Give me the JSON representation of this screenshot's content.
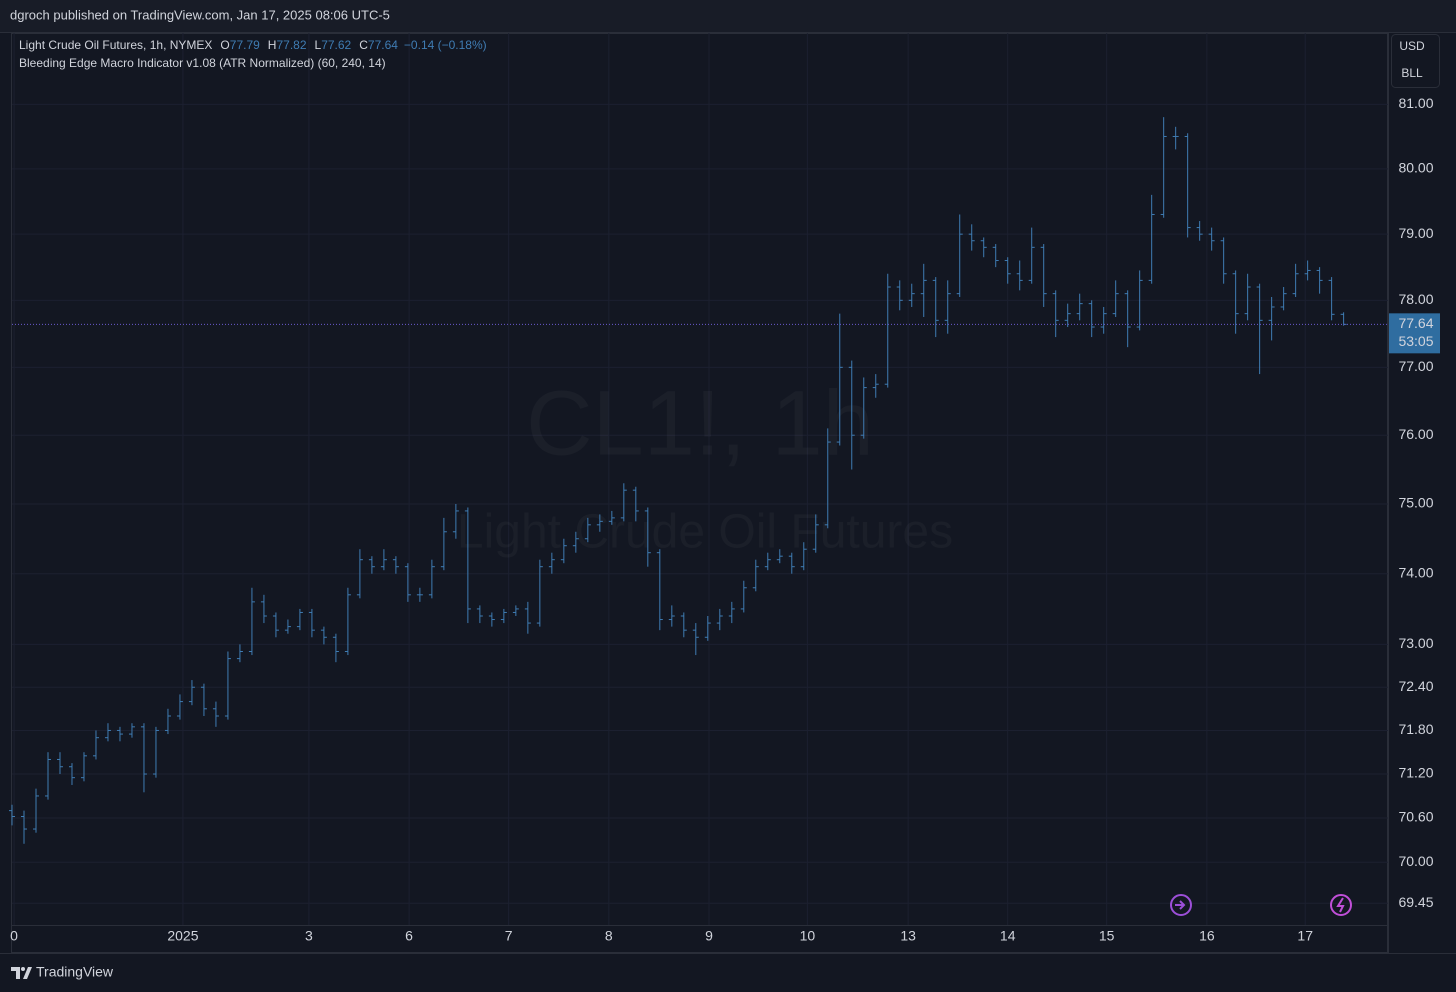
{
  "header": {
    "text": "dgroch published on TradingView.com, Jan 17, 2025 08:06 UTC-5"
  },
  "chart_data": {
    "type": "ohlc",
    "log_scale": true,
    "grid": true,
    "legend": {
      "labels": [
        "O",
        "H",
        "L",
        "C"
      ],
      "change": "−0.14 (−0.18%)",
      "indicator": "Bleeding Edge Macro Indicator v1.08 (ATR Normalized) (60, 240, 14)"
    },
    "watermark": {
      "symbol": "CL1!, 1h",
      "description": "Light Crude Oil Futures"
    },
    "price_axis_buttons": [
      "USD",
      "BLL"
    ],
    "countdown": "53:05",
    "xlim": [
      0,
      114.7
    ],
    "xticks": [
      {
        "value": 0.17,
        "label": "0"
      },
      {
        "value": 14.25,
        "label": "2025"
      },
      {
        "value": 24.75,
        "label": "3"
      },
      {
        "value": 33.1,
        "label": "6"
      },
      {
        "value": 41.4,
        "label": "7"
      },
      {
        "value": 49.75,
        "label": "8"
      },
      {
        "value": 58.1,
        "label": "9"
      },
      {
        "value": 66.3,
        "label": "10"
      },
      {
        "value": 74.7,
        "label": "13"
      },
      {
        "value": 83,
        "label": "14"
      },
      {
        "value": 91.25,
        "label": "15"
      },
      {
        "value": 99.6,
        "label": "16"
      },
      {
        "value": 107.8,
        "label": "17"
      }
    ],
    "ylim": [
      69.16,
      82.12
    ],
    "yticks": [
      {
        "value": 69.45,
        "label": "69.45"
      },
      {
        "value": 70,
        "label": "70.00"
      },
      {
        "value": 70.6,
        "label": "70.60"
      },
      {
        "value": 71.2,
        "label": "71.20"
      },
      {
        "value": 71.8,
        "label": "71.80"
      },
      {
        "value": 72.4,
        "label": "72.40"
      },
      {
        "value": 73,
        "label": "73.00"
      },
      {
        "value": 74,
        "label": "74.00"
      },
      {
        "value": 75,
        "label": "75.00"
      },
      {
        "value": 76,
        "label": "76.00"
      },
      {
        "value": 77,
        "label": "77.00"
      },
      {
        "value": 78,
        "label": "78.00"
      },
      {
        "value": 79,
        "label": "79.00"
      },
      {
        "value": 80,
        "label": "80.00"
      },
      {
        "value": 81,
        "label": "81.00"
      }
    ],
    "series": [
      {
        "name": "Light Crude Oil Futures, 1h, NYMEX",
        "color": "#3f7cb3",
        "x": [
          0,
          1,
          2,
          3,
          4,
          5,
          6,
          7,
          8,
          9,
          10,
          11,
          12,
          13,
          14,
          15,
          16,
          17,
          18,
          19,
          20,
          21,
          22,
          23,
          24,
          25,
          26,
          27,
          28,
          29,
          30,
          31,
          32,
          33,
          34,
          35,
          36,
          37,
          38,
          39,
          40,
          41,
          42,
          43,
          44,
          45,
          46,
          47,
          48,
          49,
          50,
          51,
          52,
          53,
          54,
          55,
          56,
          57,
          58,
          59,
          60,
          61,
          62,
          63,
          64,
          65,
          66,
          67,
          68,
          69,
          70,
          71,
          72,
          73,
          74,
          75,
          76,
          77,
          78,
          79,
          80,
          81,
          82,
          83,
          84,
          85,
          86,
          87,
          88,
          89,
          90,
          91,
          92,
          93,
          94,
          95,
          96,
          97,
          98,
          99,
          100,
          101,
          102,
          103,
          104,
          105,
          106,
          107,
          108,
          109,
          110,
          111
        ],
        "open": [
          70.7,
          70.62,
          70.45,
          70.9,
          71.4,
          71.3,
          71.15,
          71.45,
          71.7,
          71.8,
          71.75,
          71.85,
          71.2,
          71.8,
          72.0,
          72.2,
          72.4,
          72.1,
          72.0,
          72.8,
          72.9,
          73.6,
          73.4,
          73.2,
          73.25,
          73.45,
          73.2,
          73.1,
          72.9,
          73.7,
          74.2,
          74.1,
          74.2,
          74.1,
          73.7,
          73.7,
          74.1,
          74.6,
          74.9,
          73.5,
          73.4,
          73.35,
          73.45,
          73.5,
          73.3,
          74.1,
          74.2,
          74.4,
          74.5,
          74.7,
          74.75,
          74.8,
          75.2,
          74.9,
          74.3,
          73.35,
          73.4,
          73.2,
          73.1,
          73.3,
          73.4,
          73.5,
          73.8,
          74.1,
          74.2,
          74.25,
          74.1,
          74.35,
          74.7,
          75.9,
          77.0,
          76.0,
          76.7,
          76.75,
          78.2,
          78.0,
          78.1,
          78.3,
          77.7,
          78.1,
          79.0,
          78.9,
          78.8,
          78.6,
          78.4,
          78.3,
          78.8,
          78.1,
          77.7,
          77.8,
          77.95,
          77.6,
          77.8,
          78.1,
          77.6,
          78.3,
          79.3,
          80.5,
          80.5,
          79.1,
          79.0,
          78.9,
          78.4,
          77.8,
          78.2,
          77.7,
          77.9,
          78.1,
          78.4,
          78.45,
          78.3,
          77.79
        ],
        "high": [
          70.78,
          70.7,
          71.0,
          71.5,
          71.5,
          71.35,
          71.5,
          71.8,
          71.9,
          71.85,
          71.9,
          71.9,
          71.85,
          72.1,
          72.3,
          72.5,
          72.45,
          72.2,
          72.9,
          73.0,
          73.8,
          73.7,
          73.45,
          73.35,
          73.5,
          73.5,
          73.25,
          73.15,
          73.8,
          74.35,
          74.25,
          74.35,
          74.25,
          74.15,
          73.8,
          74.2,
          74.8,
          75.0,
          74.95,
          73.55,
          73.45,
          73.5,
          73.55,
          73.6,
          74.2,
          74.3,
          74.5,
          74.6,
          74.8,
          74.85,
          74.9,
          75.3,
          75.25,
          74.95,
          74.35,
          73.55,
          73.45,
          73.3,
          73.4,
          73.5,
          73.6,
          73.9,
          74.2,
          74.3,
          74.35,
          74.3,
          74.45,
          74.85,
          76.1,
          77.8,
          77.1,
          76.85,
          76.9,
          78.4,
          78.3,
          78.25,
          78.55,
          78.35,
          78.3,
          79.3,
          79.15,
          78.95,
          78.85,
          78.65,
          78.6,
          79.1,
          78.85,
          78.15,
          77.95,
          78.1,
          78.0,
          77.9,
          78.3,
          78.15,
          78.45,
          79.6,
          80.8,
          80.65,
          80.55,
          79.2,
          79.1,
          78.95,
          78.45,
          78.4,
          78.25,
          78.05,
          78.2,
          78.55,
          78.6,
          78.5,
          78.35,
          77.82
        ],
        "low": [
          70.5,
          70.25,
          70.4,
          70.85,
          71.2,
          71.05,
          71.1,
          71.4,
          71.65,
          71.65,
          71.7,
          70.95,
          71.15,
          71.75,
          71.95,
          72.15,
          72.0,
          71.85,
          71.95,
          72.75,
          72.85,
          73.3,
          73.1,
          73.15,
          73.2,
          73.1,
          73.0,
          72.75,
          72.85,
          73.65,
          74.0,
          74.05,
          74.0,
          73.6,
          73.6,
          73.65,
          74.05,
          74.5,
          73.3,
          73.3,
          73.25,
          73.3,
          73.4,
          73.15,
          73.25,
          74.0,
          74.15,
          74.3,
          74.45,
          74.6,
          74.7,
          74.75,
          74.75,
          74.1,
          73.2,
          73.25,
          73.1,
          72.85,
          73.05,
          73.2,
          73.3,
          73.45,
          73.75,
          74.05,
          74.15,
          74.0,
          74.05,
          74.3,
          74.65,
          75.85,
          75.5,
          75.95,
          76.55,
          76.7,
          77.85,
          77.9,
          77.75,
          77.45,
          77.5,
          78.05,
          78.75,
          78.65,
          78.5,
          78.25,
          78.15,
          78.25,
          77.9,
          77.45,
          77.6,
          77.7,
          77.45,
          77.5,
          77.75,
          77.3,
          77.55,
          78.25,
          79.25,
          80.3,
          78.95,
          78.9,
          78.75,
          78.25,
          77.5,
          77.7,
          76.9,
          77.4,
          77.85,
          78.05,
          78.3,
          78.1,
          77.7,
          77.62
        ],
        "close": [
          70.62,
          70.45,
          70.9,
          71.4,
          71.3,
          71.15,
          71.45,
          71.7,
          71.8,
          71.75,
          71.85,
          71.2,
          71.8,
          72.0,
          72.2,
          72.4,
          72.1,
          72.0,
          72.8,
          72.9,
          73.6,
          73.4,
          73.2,
          73.25,
          73.45,
          73.2,
          73.1,
          72.9,
          73.7,
          74.2,
          74.1,
          74.2,
          74.1,
          73.7,
          73.7,
          74.1,
          74.6,
          74.9,
          73.5,
          73.4,
          73.35,
          73.45,
          73.5,
          73.3,
          74.1,
          74.2,
          74.4,
          74.5,
          74.7,
          74.75,
          74.8,
          75.2,
          74.9,
          74.3,
          73.35,
          73.4,
          73.2,
          73.1,
          73.3,
          73.4,
          73.5,
          73.8,
          74.1,
          74.2,
          74.25,
          74.1,
          74.35,
          74.7,
          75.9,
          77.0,
          76.0,
          76.7,
          76.75,
          78.2,
          78.0,
          78.1,
          78.3,
          77.7,
          78.1,
          79.0,
          78.9,
          78.8,
          78.6,
          78.4,
          78.3,
          78.8,
          78.1,
          77.7,
          77.8,
          77.95,
          77.6,
          77.8,
          78.1,
          77.6,
          78.3,
          79.3,
          80.5,
          80.5,
          79.1,
          79.0,
          78.9,
          78.4,
          77.8,
          78.2,
          77.7,
          77.9,
          78.1,
          78.4,
          78.45,
          78.3,
          77.79,
          77.64
        ]
      }
    ]
  },
  "footer": {
    "brand": "TradingView"
  }
}
